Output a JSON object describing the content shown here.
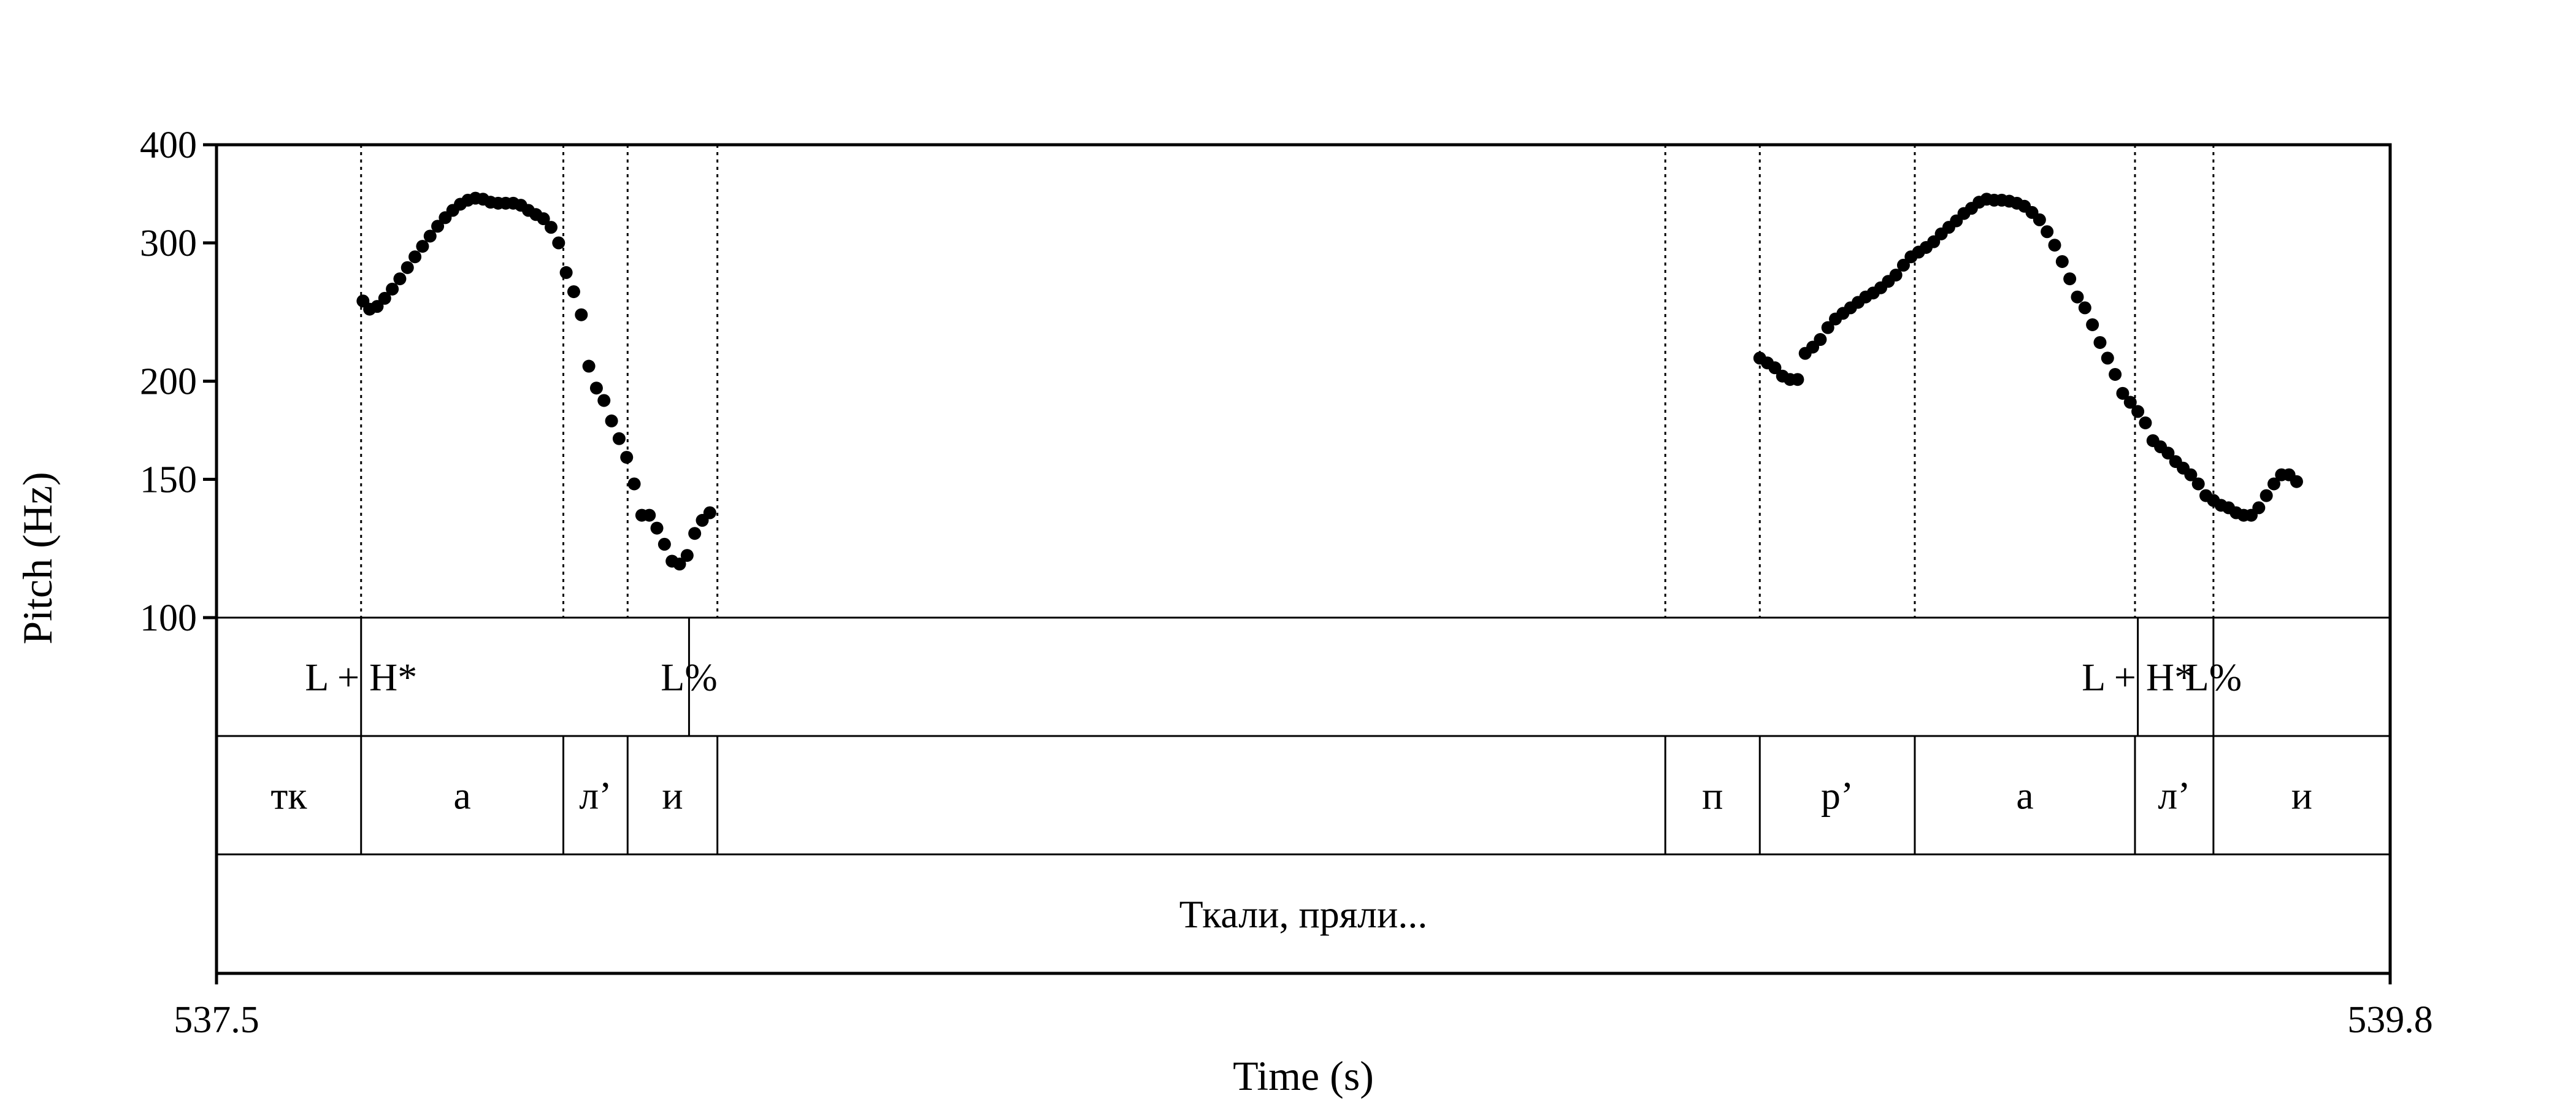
{
  "chart_data": {
    "type": "scatter",
    "xlabel": "Time (s)",
    "ylabel": "Pitch (Hz)",
    "xlim": [
      537.5,
      539.8
    ],
    "ylim": [
      100,
      400
    ],
    "y_scale": "log",
    "y_ticks": [
      100,
      150,
      200,
      300,
      400
    ],
    "x_tick_labels": [
      "537.5",
      "539.8"
    ],
    "marker_color": "#000000",
    "pitch_points": [
      {
        "x": 537.655,
        "y": 253
      },
      {
        "x": 537.662,
        "y": 247
      },
      {
        "x": 537.67,
        "y": 249
      },
      {
        "x": 537.678,
        "y": 255
      },
      {
        "x": 537.686,
        "y": 262
      },
      {
        "x": 537.694,
        "y": 270
      },
      {
        "x": 537.702,
        "y": 279
      },
      {
        "x": 537.71,
        "y": 288
      },
      {
        "x": 537.718,
        "y": 297
      },
      {
        "x": 537.726,
        "y": 306
      },
      {
        "x": 537.734,
        "y": 315
      },
      {
        "x": 537.742,
        "y": 323
      },
      {
        "x": 537.75,
        "y": 330
      },
      {
        "x": 537.758,
        "y": 336
      },
      {
        "x": 537.766,
        "y": 340
      },
      {
        "x": 537.774,
        "y": 342
      },
      {
        "x": 537.782,
        "y": 341
      },
      {
        "x": 537.79,
        "y": 338
      },
      {
        "x": 537.798,
        "y": 337
      },
      {
        "x": 537.806,
        "y": 337
      },
      {
        "x": 537.814,
        "y": 337
      },
      {
        "x": 537.822,
        "y": 335
      },
      {
        "x": 537.83,
        "y": 330
      },
      {
        "x": 537.838,
        "y": 326
      },
      {
        "x": 537.846,
        "y": 322
      },
      {
        "x": 537.854,
        "y": 314
      },
      {
        "x": 537.862,
        "y": 300
      },
      {
        "x": 537.87,
        "y": 275
      },
      {
        "x": 537.878,
        "y": 260
      },
      {
        "x": 537.886,
        "y": 243
      },
      {
        "x": 537.894,
        "y": 209
      },
      {
        "x": 537.902,
        "y": 196
      },
      {
        "x": 537.91,
        "y": 189
      },
      {
        "x": 537.918,
        "y": 178
      },
      {
        "x": 537.926,
        "y": 169
      },
      {
        "x": 537.934,
        "y": 160
      },
      {
        "x": 537.942,
        "y": 148
      },
      {
        "x": 537.95,
        "y": 135
      },
      {
        "x": 537.958,
        "y": 135
      },
      {
        "x": 537.966,
        "y": 130
      },
      {
        "x": 537.974,
        "y": 124
      },
      {
        "x": 537.982,
        "y": 118
      },
      {
        "x": 537.99,
        "y": 117
      },
      {
        "x": 537.998,
        "y": 120
      },
      {
        "x": 538.006,
        "y": 128
      },
      {
        "x": 538.014,
        "y": 133
      },
      {
        "x": 538.022,
        "y": 136
      },
      {
        "x": 539.133,
        "y": 214
      },
      {
        "x": 539.141,
        "y": 211
      },
      {
        "x": 539.149,
        "y": 208
      },
      {
        "x": 539.157,
        "y": 203
      },
      {
        "x": 539.165,
        "y": 201
      },
      {
        "x": 539.173,
        "y": 201
      },
      {
        "x": 539.181,
        "y": 217
      },
      {
        "x": 539.189,
        "y": 221
      },
      {
        "x": 539.197,
        "y": 226
      },
      {
        "x": 539.205,
        "y": 234
      },
      {
        "x": 539.213,
        "y": 240
      },
      {
        "x": 539.221,
        "y": 244
      },
      {
        "x": 539.229,
        "y": 248
      },
      {
        "x": 539.237,
        "y": 252
      },
      {
        "x": 539.245,
        "y": 256
      },
      {
        "x": 539.253,
        "y": 259
      },
      {
        "x": 539.261,
        "y": 263
      },
      {
        "x": 539.269,
        "y": 268
      },
      {
        "x": 539.277,
        "y": 273
      },
      {
        "x": 539.285,
        "y": 281
      },
      {
        "x": 539.293,
        "y": 288
      },
      {
        "x": 539.301,
        "y": 292
      },
      {
        "x": 539.309,
        "y": 296
      },
      {
        "x": 539.317,
        "y": 301
      },
      {
        "x": 539.325,
        "y": 308
      },
      {
        "x": 539.333,
        "y": 314
      },
      {
        "x": 539.341,
        "y": 320
      },
      {
        "x": 539.349,
        "y": 327
      },
      {
        "x": 539.357,
        "y": 332
      },
      {
        "x": 539.365,
        "y": 338
      },
      {
        "x": 539.373,
        "y": 341
      },
      {
        "x": 539.381,
        "y": 340
      },
      {
        "x": 539.389,
        "y": 340
      },
      {
        "x": 539.397,
        "y": 339
      },
      {
        "x": 539.405,
        "y": 337
      },
      {
        "x": 539.413,
        "y": 334
      },
      {
        "x": 539.421,
        "y": 328
      },
      {
        "x": 539.429,
        "y": 321
      },
      {
        "x": 539.437,
        "y": 310
      },
      {
        "x": 539.445,
        "y": 298
      },
      {
        "x": 539.453,
        "y": 284
      },
      {
        "x": 539.461,
        "y": 270
      },
      {
        "x": 539.469,
        "y": 256
      },
      {
        "x": 539.477,
        "y": 248
      },
      {
        "x": 539.485,
        "y": 236
      },
      {
        "x": 539.493,
        "y": 224
      },
      {
        "x": 539.501,
        "y": 214
      },
      {
        "x": 539.509,
        "y": 204
      },
      {
        "x": 539.517,
        "y": 193
      },
      {
        "x": 539.525,
        "y": 188
      },
      {
        "x": 539.533,
        "y": 183
      },
      {
        "x": 539.541,
        "y": 177
      },
      {
        "x": 539.549,
        "y": 168
      },
      {
        "x": 539.557,
        "y": 165
      },
      {
        "x": 539.565,
        "y": 162
      },
      {
        "x": 539.573,
        "y": 158
      },
      {
        "x": 539.581,
        "y": 155
      },
      {
        "x": 539.589,
        "y": 152
      },
      {
        "x": 539.597,
        "y": 148
      },
      {
        "x": 539.605,
        "y": 143
      },
      {
        "x": 539.613,
        "y": 141
      },
      {
        "x": 539.621,
        "y": 139
      },
      {
        "x": 539.629,
        "y": 138
      },
      {
        "x": 539.637,
        "y": 136
      },
      {
        "x": 539.645,
        "y": 135
      },
      {
        "x": 539.653,
        "y": 135
      },
      {
        "x": 539.661,
        "y": 138
      },
      {
        "x": 539.669,
        "y": 143
      },
      {
        "x": 539.677,
        "y": 148
      },
      {
        "x": 539.685,
        "y": 152
      },
      {
        "x": 539.693,
        "y": 152
      },
      {
        "x": 539.701,
        "y": 149
      }
    ],
    "tone_tier": {
      "boundaries": [
        537.653,
        538.0,
        539.533,
        539.613
      ],
      "labels": [
        {
          "text": "L + H*",
          "t": 537.653
        },
        {
          "text": "L%",
          "t": 538.0
        },
        {
          "text": "L + H*",
          "t": 539.533
        },
        {
          "text": "L%",
          "t": 539.613
        }
      ]
    },
    "segment_tier": {
      "boundaries": [
        537.653,
        537.867,
        537.935,
        538.03,
        539.033,
        539.133,
        539.297,
        539.53,
        539.613
      ],
      "intervals": [
        {
          "text": "тк",
          "start": 537.5,
          "end": 537.653
        },
        {
          "text": "а",
          "start": 537.653,
          "end": 537.867
        },
        {
          "text": "л’",
          "start": 537.867,
          "end": 537.935
        },
        {
          "text": "и",
          "start": 537.935,
          "end": 538.03
        },
        {
          "text": "п",
          "start": 539.033,
          "end": 539.133
        },
        {
          "text": "р’",
          "start": 539.133,
          "end": 539.297
        },
        {
          "text": "а",
          "start": 539.297,
          "end": 539.53
        },
        {
          "text": "л’",
          "start": 539.53,
          "end": 539.613
        },
        {
          "text": "и",
          "start": 539.613,
          "end": 539.8
        }
      ]
    },
    "phrase_tier": {
      "text": "Ткали, пряли...",
      "start": 537.5,
      "end": 539.8
    },
    "pitch_guides": [
      537.653,
      537.867,
      537.935,
      538.03,
      539.033,
      539.133,
      539.297,
      539.53,
      539.613
    ]
  }
}
